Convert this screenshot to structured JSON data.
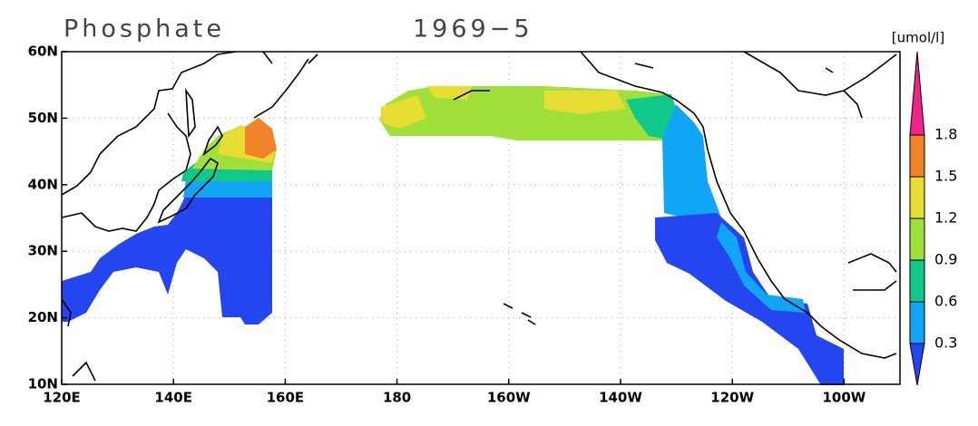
{
  "header": {
    "title": "Phosphate",
    "period": "1969−5"
  },
  "axes": {
    "lon_range": [
      120,
      270
    ],
    "lat_range": [
      10,
      60
    ],
    "lon_ticks": [
      {
        "value": 120,
        "label": "120E"
      },
      {
        "value": 140,
        "label": "140E"
      },
      {
        "value": 160,
        "label": "160E"
      },
      {
        "value": 180,
        "label": "180"
      },
      {
        "value": 200,
        "label": "160W"
      },
      {
        "value": 220,
        "label": "140W"
      },
      {
        "value": 240,
        "label": "120W"
      },
      {
        "value": 260,
        "label": "100W"
      }
    ],
    "lat_ticks": [
      {
        "value": 10,
        "label": "10N"
      },
      {
        "value": 20,
        "label": "20N"
      },
      {
        "value": 30,
        "label": "30N"
      },
      {
        "value": 40,
        "label": "40N"
      },
      {
        "value": 50,
        "label": "50N"
      },
      {
        "value": 60,
        "label": "60N"
      }
    ]
  },
  "colorbar": {
    "unit": "[umol/l]",
    "levels": [
      0.3,
      0.6,
      0.9,
      1.2,
      1.5,
      1.8
    ],
    "colors": [
      "#2346f0",
      "#10a6f5",
      "#10c989",
      "#9fe13a",
      "#e6dc32",
      "#f08228",
      "#f0228c"
    ]
  }
}
